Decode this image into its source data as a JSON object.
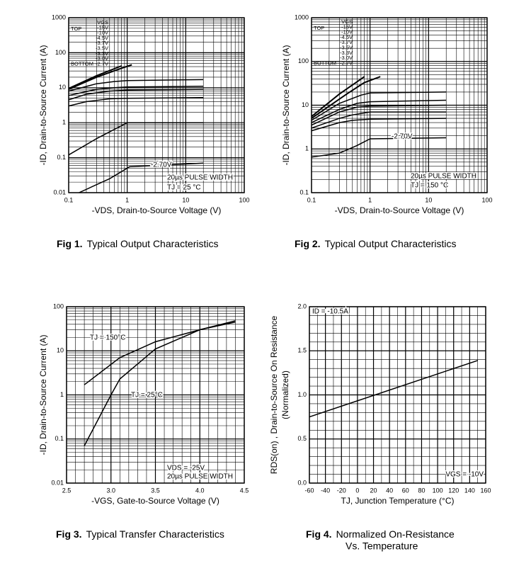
{
  "chart_data": [
    {
      "type": "line",
      "figure_label": "Fig 1.",
      "caption": "Typical Output Characteristics",
      "xlabel": "-VDS, Drain-to-Source Voltage (V)",
      "ylabel": "-ID, Drain-to-Source Current (A)",
      "xlog": true,
      "ylog": true,
      "xlim": [
        0.1,
        100
      ],
      "ylim": [
        0.01,
        1000
      ],
      "xticks": [
        0.1,
        1,
        10,
        100
      ],
      "yticks": [
        0.01,
        0.1,
        1,
        10,
        100,
        1000
      ],
      "grid": true,
      "minor_grid": true,
      "color": "#000000",
      "legend_title": "VGS",
      "legend_top": "TOP",
      "legend_bottom": "BOTTOM",
      "series": [
        {
          "name": "-15V",
          "x": [
            0.1,
            0.3,
            0.8
          ],
          "values": [
            9.5,
            22,
            42
          ]
        },
        {
          "name": "-10V",
          "x": [
            0.1,
            0.3,
            0.8,
            1.2
          ],
          "values": [
            9,
            20,
            36,
            45
          ]
        },
        {
          "name": "-4.5V",
          "x": [
            0.1,
            0.3,
            0.6,
            1,
            20
          ],
          "values": [
            8,
            13,
            15,
            16,
            17
          ]
        },
        {
          "name": "-3.7V",
          "x": [
            0.1,
            0.3,
            0.6,
            1,
            20
          ],
          "values": [
            6,
            9,
            10,
            10.5,
            11
          ]
        },
        {
          "name": "-3.5V",
          "x": [
            0.1,
            0.2,
            0.5,
            1,
            20
          ],
          "values": [
            4.5,
            6.5,
            8,
            8.5,
            9
          ]
        },
        {
          "name": "-3.3V",
          "x": [
            0.1,
            0.2,
            0.5,
            1,
            20
          ],
          "values": [
            3,
            4,
            4.8,
            5,
            5.2
          ]
        },
        {
          "name": "-3.0V",
          "x": [
            0.1,
            0.3,
            1,
            20
          ],
          "values": [
            0.12,
            0.35,
            1,
            1
          ]
        },
        {
          "name": "-2.7V",
          "x": [
            0.15,
            0.5,
            1.1,
            20
          ],
          "values": [
            0.01,
            0.025,
            0.055,
            0.07
          ]
        }
      ],
      "annotations": [
        "-2.70V",
        "20µs PULSE WIDTH",
        "TJ = 25 °C"
      ]
    },
    {
      "type": "line",
      "figure_label": "Fig 2.",
      "caption": "Typical Output Characteristics",
      "xlabel": "-VDS, Drain-to-Source Voltage (V)",
      "ylabel": "-ID, Drain-to-Source Current (A)",
      "xlog": true,
      "ylog": true,
      "xlim": [
        0.1,
        100
      ],
      "ylim": [
        0.1,
        1000
      ],
      "xticks": [
        0.1,
        1,
        10,
        100
      ],
      "yticks": [
        0.1,
        1,
        10,
        100,
        1000
      ],
      "grid": true,
      "minor_grid": true,
      "color": "#000000",
      "legend_title": "VGS",
      "legend_top": "TOP",
      "legend_bottom": "BOTTOM",
      "series": [
        {
          "name": "-15V",
          "x": [
            0.1,
            0.3,
            0.8
          ],
          "values": [
            5.5,
            18,
            45
          ]
        },
        {
          "name": "-10V",
          "x": [
            0.1,
            0.4,
            0.8,
            1.5
          ],
          "values": [
            5,
            18,
            33,
            45
          ]
        },
        {
          "name": "-4.5V",
          "x": [
            0.1,
            0.3,
            0.7,
            1,
            20
          ],
          "values": [
            4.5,
            11,
            17,
            19,
            20
          ]
        },
        {
          "name": "-3.7V",
          "x": [
            0.1,
            0.3,
            0.6,
            1,
            20
          ],
          "values": [
            4,
            8,
            11,
            12,
            13
          ]
        },
        {
          "name": "-3.5V",
          "x": [
            0.1,
            0.3,
            0.6,
            1,
            20
          ],
          "values": [
            3.5,
            7,
            9,
            9.5,
            10
          ]
        },
        {
          "name": "-3.3V",
          "x": [
            0.1,
            0.3,
            0.5,
            1,
            20
          ],
          "values": [
            3,
            5,
            6,
            7,
            7
          ]
        },
        {
          "name": "-3.0V",
          "x": [
            0.1,
            0.3,
            0.5,
            1,
            20
          ],
          "values": [
            2.6,
            4,
            4.5,
            4.8,
            5
          ]
        },
        {
          "name": "-2.7V",
          "x": [
            0.1,
            0.3,
            0.6,
            1,
            20
          ],
          "values": [
            0.65,
            0.8,
            1.2,
            1.7,
            1.8
          ]
        }
      ],
      "annotations": [
        "-2.70V",
        "20µs PULSE WIDTH",
        "TJ = 150 °C"
      ]
    },
    {
      "type": "line",
      "figure_label": "Fig 3.",
      "caption": "Typical Transfer Characteristics",
      "xlabel": "-VGS, Gate-to-Source Voltage (V)",
      "ylabel": "-ID, Drain-to-Source Current (A)",
      "xlog": false,
      "ylog": true,
      "xlim": [
        2.5,
        4.5
      ],
      "ylim": [
        0.01,
        100
      ],
      "xticks": [
        2.5,
        {
          "value": 3,
          "label": "3.0"
        },
        3.5,
        {
          "value": 4,
          "label": "4.0"
        },
        4.5
      ],
      "yticks": [
        0.01,
        0.1,
        1,
        10,
        100
      ],
      "grid": true,
      "minor_grid": true,
      "x_minor_step": 0.1,
      "color": "#000000",
      "series": [
        {
          "name": "TJ = 150°C",
          "x": [
            2.7,
            3.1,
            3.5,
            4.0,
            4.4
          ],
          "values": [
            1.7,
            7,
            16,
            30,
            45
          ]
        },
        {
          "name": "TJ = 25°C",
          "x": [
            2.7,
            3.0,
            3.1,
            3.5,
            4.0,
            4.4
          ],
          "values": [
            0.07,
            1,
            2.3,
            11,
            30,
            48
          ]
        }
      ],
      "annotations": [
        "VDS = -25V",
        "20µs PULSE WIDTH"
      ]
    },
    {
      "type": "line",
      "figure_label": "Fig 4.",
      "caption": [
        "Normalized On-Resistance",
        "Vs. Temperature"
      ],
      "xlabel": "TJ, Junction Temperature (°C)",
      "ylabel": [
        "RDS(on) , Drain-to-Source On Resistance",
        "(Normalized)"
      ],
      "xlog": false,
      "ylog": false,
      "xlim": [
        -60,
        160
      ],
      "ylim": [
        0,
        2
      ],
      "xticks": [
        -60,
        -40,
        -20,
        0,
        20,
        40,
        60,
        80,
        100,
        120,
        140,
        160
      ],
      "yticks": [
        {
          "value": 0,
          "label": "0.0"
        },
        0.5,
        {
          "value": 1,
          "label": "1.0"
        },
        1.5,
        {
          "value": 2,
          "label": "2.0"
        }
      ],
      "grid": true,
      "minor_grid": true,
      "x_minor_step": 10,
      "y_minor_step": 0.1,
      "color": "#000000",
      "series": [
        {
          "x": [
            -60,
            150
          ],
          "values": [
            0.75,
            1.39
          ]
        }
      ],
      "annotations": [
        "ID = -10.5A",
        "VGS = -10V"
      ]
    }
  ]
}
